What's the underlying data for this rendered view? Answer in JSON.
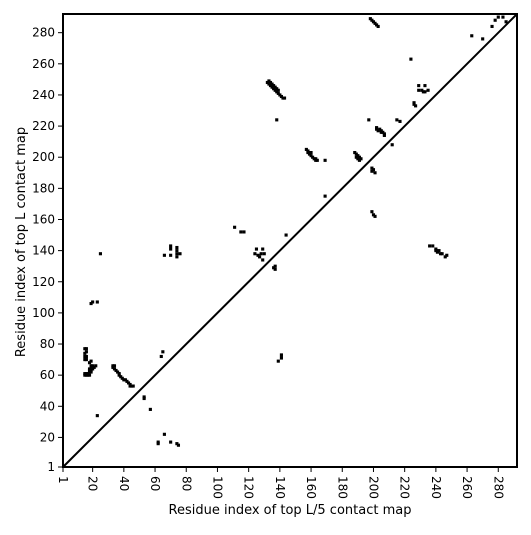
{
  "chart_data": {
    "type": "scatter",
    "title": "",
    "xlabel": "Residue index of top L/5 contact map",
    "ylabel": "Residue index of top L contact map",
    "xlim": [
      1,
      292
    ],
    "ylim": [
      1,
      292
    ],
    "x_ticks": [
      {
        "value": 1,
        "label": "1"
      },
      {
        "value": 20,
        "label": "20"
      },
      {
        "value": 40,
        "label": "40"
      },
      {
        "value": 60,
        "label": "60"
      },
      {
        "value": 80,
        "label": "80"
      },
      {
        "value": 100,
        "label": "100"
      },
      {
        "value": 120,
        "label": "120"
      },
      {
        "value": 140,
        "label": "140"
      },
      {
        "value": 160,
        "label": "160"
      },
      {
        "value": 180,
        "label": "180"
      },
      {
        "value": 200,
        "label": "200"
      },
      {
        "value": 220,
        "label": "220"
      },
      {
        "value": 240,
        "label": "240"
      },
      {
        "value": 260,
        "label": "260"
      },
      {
        "value": 280,
        "label": "280"
      }
    ],
    "y_ticks": [
      {
        "value": 1,
        "label": "1"
      },
      {
        "value": 20,
        "label": "20"
      },
      {
        "value": 40,
        "label": "40"
      },
      {
        "value": 60,
        "label": "60"
      },
      {
        "value": 80,
        "label": "80"
      },
      {
        "value": 100,
        "label": "100"
      },
      {
        "value": 120,
        "label": "120"
      },
      {
        "value": 140,
        "label": "140"
      },
      {
        "value": 160,
        "label": "160"
      },
      {
        "value": 180,
        "label": "180"
      },
      {
        "value": 200,
        "label": "200"
      },
      {
        "value": 220,
        "label": "220"
      },
      {
        "value": 240,
        "label": "240"
      },
      {
        "value": 260,
        "label": "260"
      },
      {
        "value": 280,
        "label": "280"
      }
    ],
    "diagonal": {
      "from": [
        1,
        1
      ],
      "to": [
        292,
        292
      ]
    },
    "grid": false,
    "marker_color": "#000000",
    "lower_triangle_points": [
      [
        62,
        16
      ],
      [
        62,
        17
      ],
      [
        66,
        22
      ],
      [
        70,
        17
      ],
      [
        74,
        16
      ],
      [
        75,
        15
      ],
      [
        23,
        34
      ],
      [
        53,
        45
      ],
      [
        53,
        46
      ],
      [
        57,
        38
      ],
      [
        44,
        53
      ],
      [
        45,
        53
      ],
      [
        46,
        53
      ],
      [
        44,
        54
      ],
      [
        43,
        55
      ],
      [
        42,
        56
      ],
      [
        41,
        57
      ],
      [
        40,
        57
      ],
      [
        39,
        58
      ],
      [
        38,
        59
      ],
      [
        37,
        60
      ],
      [
        37,
        61
      ],
      [
        36,
        62
      ],
      [
        35,
        63
      ],
      [
        34,
        64
      ],
      [
        33,
        65
      ],
      [
        33,
        66
      ],
      [
        34,
        66
      ],
      [
        15,
        60
      ],
      [
        16,
        60
      ],
      [
        17,
        60
      ],
      [
        18,
        60
      ],
      [
        15,
        61
      ],
      [
        16,
        61
      ],
      [
        17,
        61
      ],
      [
        18,
        62
      ],
      [
        19,
        62
      ],
      [
        18,
        63
      ],
      [
        19,
        63
      ],
      [
        18,
        64
      ],
      [
        20,
        64
      ],
      [
        19,
        65
      ],
      [
        21,
        65
      ],
      [
        19,
        66
      ],
      [
        20,
        66
      ],
      [
        22,
        66
      ],
      [
        18,
        68
      ],
      [
        19,
        69
      ],
      [
        15,
        70
      ],
      [
        16,
        70
      ],
      [
        15,
        72
      ],
      [
        16,
        72
      ],
      [
        15,
        74
      ],
      [
        16,
        75
      ],
      [
        15,
        77
      ],
      [
        16,
        77
      ],
      [
        19,
        106
      ],
      [
        20,
        107
      ],
      [
        23,
        107
      ],
      [
        25,
        138
      ],
      [
        64,
        72
      ],
      [
        65,
        75
      ],
      [
        139,
        69
      ],
      [
        141,
        71
      ],
      [
        141,
        73
      ],
      [
        66,
        137
      ],
      [
        70,
        137
      ],
      [
        70,
        141
      ],
      [
        70,
        143
      ],
      [
        74,
        136
      ],
      [
        74,
        138
      ],
      [
        74,
        140
      ],
      [
        74,
        142
      ],
      [
        76,
        138
      ],
      [
        238,
        143
      ],
      [
        240,
        140
      ],
      [
        240,
        141
      ],
      [
        241,
        139
      ],
      [
        242,
        140
      ],
      [
        243,
        138
      ],
      [
        244,
        138
      ],
      [
        246,
        136
      ],
      [
        247,
        137
      ]
    ],
    "upper_triangle_points": [
      [
        111,
        155
      ],
      [
        115,
        152
      ],
      [
        117,
        152
      ],
      [
        124,
        138
      ],
      [
        125,
        141
      ],
      [
        126,
        137
      ],
      [
        127,
        136
      ],
      [
        128,
        138
      ],
      [
        129,
        134
      ],
      [
        129,
        141
      ],
      [
        130,
        138
      ],
      [
        136,
        129
      ],
      [
        137,
        130
      ],
      [
        137,
        128
      ],
      [
        144,
        150
      ],
      [
        132,
        248
      ],
      [
        133,
        247
      ],
      [
        133,
        249
      ],
      [
        134,
        246
      ],
      [
        134,
        248
      ],
      [
        135,
        245
      ],
      [
        135,
        247
      ],
      [
        136,
        244
      ],
      [
        136,
        246
      ],
      [
        137,
        243
      ],
      [
        137,
        245
      ],
      [
        138,
        242
      ],
      [
        138,
        244
      ],
      [
        139,
        241
      ],
      [
        139,
        243
      ],
      [
        140,
        240
      ],
      [
        141,
        239
      ],
      [
        142,
        238
      ],
      [
        143,
        238
      ],
      [
        138,
        224
      ],
      [
        157,
        205
      ],
      [
        158,
        204
      ],
      [
        158,
        203
      ],
      [
        159,
        202
      ],
      [
        160,
        201
      ],
      [
        160,
        203
      ],
      [
        161,
        200
      ],
      [
        162,
        199
      ],
      [
        163,
        199
      ],
      [
        163,
        198
      ],
      [
        164,
        198
      ],
      [
        169,
        198
      ],
      [
        169,
        175
      ],
      [
        188,
        203
      ],
      [
        189,
        202
      ],
      [
        189,
        200
      ],
      [
        190,
        201
      ],
      [
        190,
        199
      ],
      [
        191,
        200
      ],
      [
        191,
        198
      ],
      [
        192,
        199
      ],
      [
        197,
        224
      ],
      [
        199,
        193
      ],
      [
        199,
        191
      ],
      [
        200,
        192
      ],
      [
        201,
        190
      ],
      [
        199,
        165
      ],
      [
        200,
        163
      ],
      [
        201,
        162
      ],
      [
        202,
        219
      ],
      [
        202,
        218
      ],
      [
        203,
        217
      ],
      [
        204,
        218
      ],
      [
        205,
        217
      ],
      [
        205,
        216
      ],
      [
        206,
        216
      ],
      [
        207,
        215
      ],
      [
        207,
        214
      ],
      [
        198,
        289
      ],
      [
        199,
        288
      ],
      [
        200,
        287
      ],
      [
        201,
        286
      ],
      [
        202,
        285
      ],
      [
        203,
        284
      ],
      [
        212,
        208
      ],
      [
        215,
        224
      ],
      [
        217,
        223
      ],
      [
        224,
        263
      ],
      [
        226,
        235
      ],
      [
        226,
        234
      ],
      [
        227,
        233
      ],
      [
        229,
        246
      ],
      [
        229,
        243
      ],
      [
        231,
        243
      ],
      [
        232,
        242
      ],
      [
        233,
        242
      ],
      [
        233,
        246
      ],
      [
        235,
        243
      ],
      [
        236,
        143
      ],
      [
        263,
        278
      ],
      [
        270,
        276
      ],
      [
        276,
        284
      ],
      [
        278,
        288
      ],
      [
        280,
        290
      ],
      [
        283,
        290
      ],
      [
        285,
        287
      ]
    ]
  }
}
